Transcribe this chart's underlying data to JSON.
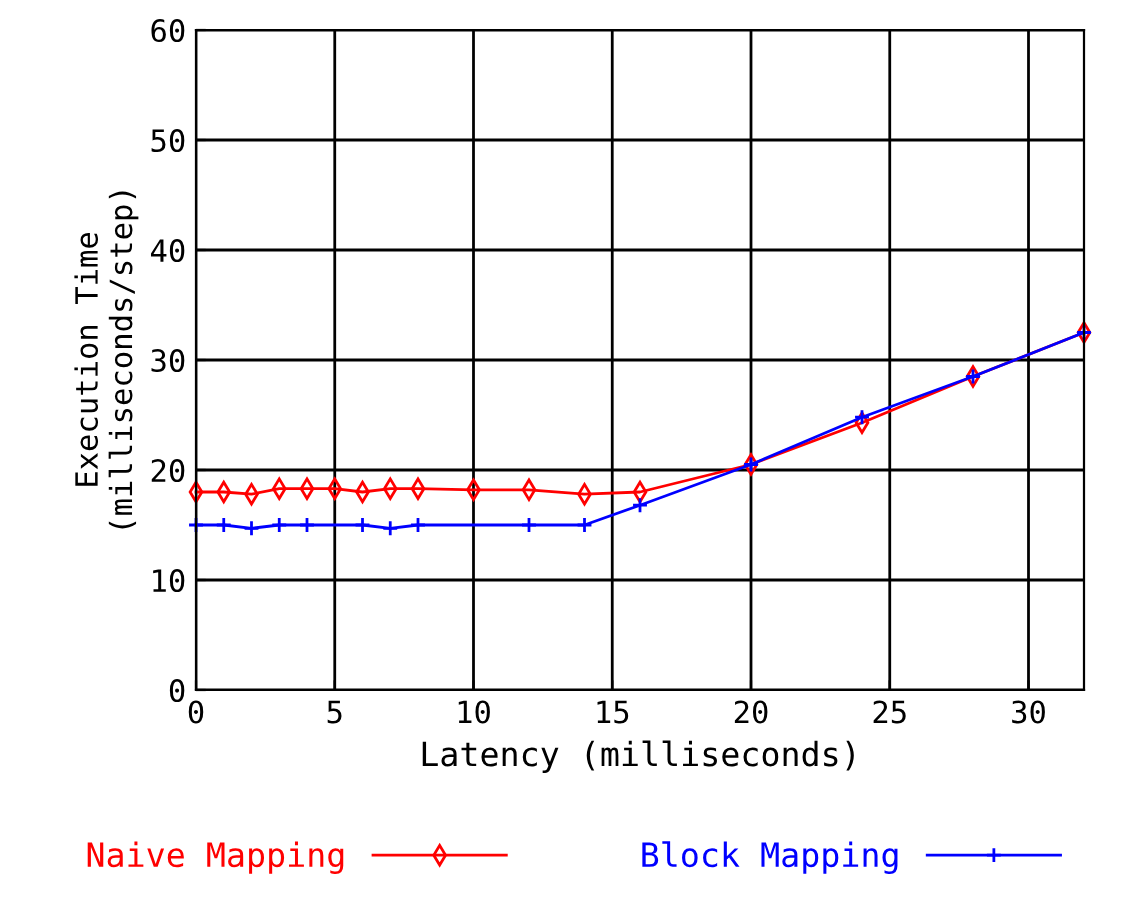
{
  "chart_data": {
    "type": "line",
    "xlabel": "Latency (milliseconds)",
    "ylabel": "Execution Time\n(milliseconds/step)",
    "xlim": [
      0,
      32
    ],
    "xticks": [
      0,
      5,
      10,
      15,
      20,
      25,
      30
    ],
    "ylim": [
      0,
      60
    ],
    "yticks": [
      0,
      10,
      20,
      30,
      40,
      50,
      60
    ],
    "grid": true,
    "legend": "bottom",
    "series": [
      {
        "name": "Naive Mapping",
        "color": "#ff0000",
        "marker": "diamond",
        "x": [
          0,
          1,
          2,
          3,
          4,
          5,
          6,
          7,
          8,
          10,
          12,
          14,
          16,
          20,
          24,
          28,
          32
        ],
        "values": [
          18,
          18,
          17.8,
          18.3,
          18.3,
          18.3,
          18,
          18.3,
          18.3,
          18.2,
          18.2,
          17.8,
          18,
          20.5,
          24.3,
          28.5,
          32.5
        ]
      },
      {
        "name": "Block Mapping",
        "color": "#0000ff",
        "marker": "cross",
        "x": [
          0,
          1,
          2,
          3,
          4,
          6,
          7,
          8,
          12,
          14,
          16,
          20,
          24,
          28,
          32
        ],
        "values": [
          15,
          15,
          14.7,
          15,
          15,
          15,
          14.7,
          15,
          15,
          15,
          16.8,
          20.5,
          24.8,
          28.5,
          32.5
        ]
      }
    ]
  }
}
